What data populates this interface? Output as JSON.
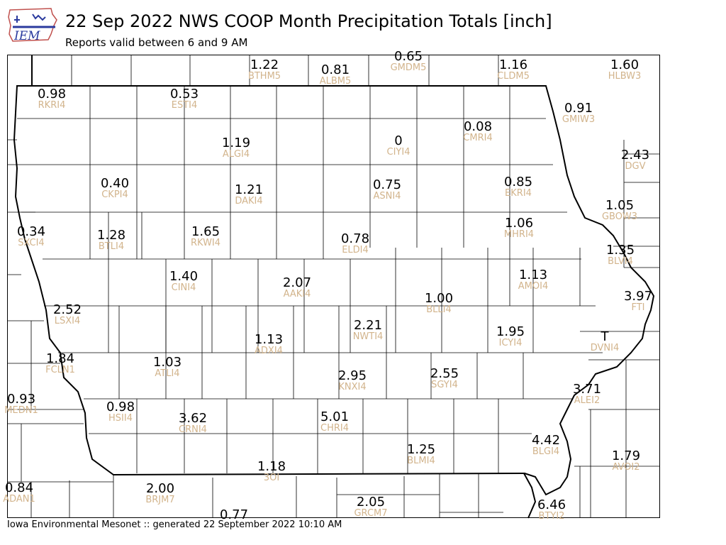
{
  "header": {
    "title": "22 Sep 2022 NWS COOP Month Precipitation Totals [inch]",
    "subtitle": "Reports valid between 6 and 9 AM"
  },
  "footer": {
    "text": "Iowa Environmental Mesonet :: generated 22 September 2022 10:10 AM"
  },
  "logo": {
    "text": "IEM",
    "icon": "iem-state-logo-icon"
  },
  "colors": {
    "value": "#000000",
    "station_id": "#d2b48c",
    "state_border": "#000000",
    "county_lines": "#000000"
  },
  "stations": [
    {
      "value": "1.22",
      "id": "BTHM5"
    },
    {
      "value": "0.81",
      "id": "ALBM5"
    },
    {
      "value": "0.65",
      "id": "GMDM5"
    },
    {
      "value": "1.16",
      "id": "CLDM5"
    },
    {
      "value": "1.60",
      "id": "HLBW3"
    },
    {
      "value": "0.98",
      "id": "RKRI4"
    },
    {
      "value": "0.53",
      "id": "ESTI4"
    },
    {
      "value": "0.91",
      "id": "GMIW3"
    },
    {
      "value": "1.19",
      "id": "ALGI4"
    },
    {
      "value": "0",
      "id": "CIYI4"
    },
    {
      "value": "0.08",
      "id": "CMRI4"
    },
    {
      "value": "2.43",
      "id": "DGV"
    },
    {
      "value": "0.40",
      "id": "CKPI4"
    },
    {
      "value": "1.21",
      "id": "DAKI4"
    },
    {
      "value": "0.75",
      "id": "ASNI4"
    },
    {
      "value": "0.85",
      "id": "EKRI4"
    },
    {
      "value": "1.05",
      "id": "GBOW3"
    },
    {
      "value": "0.34",
      "id": "SXCI4"
    },
    {
      "value": "1.28",
      "id": "BTLI4"
    },
    {
      "value": "1.65",
      "id": "RKWI4"
    },
    {
      "value": "0.78",
      "id": "ELDI4"
    },
    {
      "value": "1.06",
      "id": "MHRI4"
    },
    {
      "value": "1.35",
      "id": "BLVI4"
    },
    {
      "value": "1.40",
      "id": "CINI4"
    },
    {
      "value": "2.07",
      "id": "AAKI4"
    },
    {
      "value": "1.13",
      "id": "AMOI4"
    },
    {
      "value": "1.00",
      "id": "BLLI4"
    },
    {
      "value": "3.97",
      "id": "FTI"
    },
    {
      "value": "2.52",
      "id": "LSXI4"
    },
    {
      "value": "2.21",
      "id": "NWTI4"
    },
    {
      "value": "1.95",
      "id": "ICYI4"
    },
    {
      "value": "T",
      "id": "DVNI4"
    },
    {
      "value": "1.13",
      "id": "ADXI4"
    },
    {
      "value": "1.84",
      "id": "FCLN1"
    },
    {
      "value": "1.03",
      "id": "ATLI4"
    },
    {
      "value": "2.95",
      "id": "KNXI4"
    },
    {
      "value": "2.55",
      "id": "SGYI4"
    },
    {
      "value": "3.71",
      "id": "ALEI2"
    },
    {
      "value": "0.93",
      "id": "MEDN1"
    },
    {
      "value": "0.98",
      "id": "HSII4"
    },
    {
      "value": "3.62",
      "id": "CRNI4"
    },
    {
      "value": "5.01",
      "id": "CHRI4"
    },
    {
      "value": "4.42",
      "id": "BLGI4"
    },
    {
      "value": "1.25",
      "id": "BLMI4"
    },
    {
      "value": "1.79",
      "id": "AVOI2"
    },
    {
      "value": "1.18",
      "id": "3OI"
    },
    {
      "value": "0.84",
      "id": "ADAN1"
    },
    {
      "value": "2.00",
      "id": "BRJM7"
    },
    {
      "value": "2.05",
      "id": "GRCM7"
    },
    {
      "value": "6.46",
      "id": "BTYI2"
    },
    {
      "value": "0.77",
      "id": ""
    }
  ]
}
